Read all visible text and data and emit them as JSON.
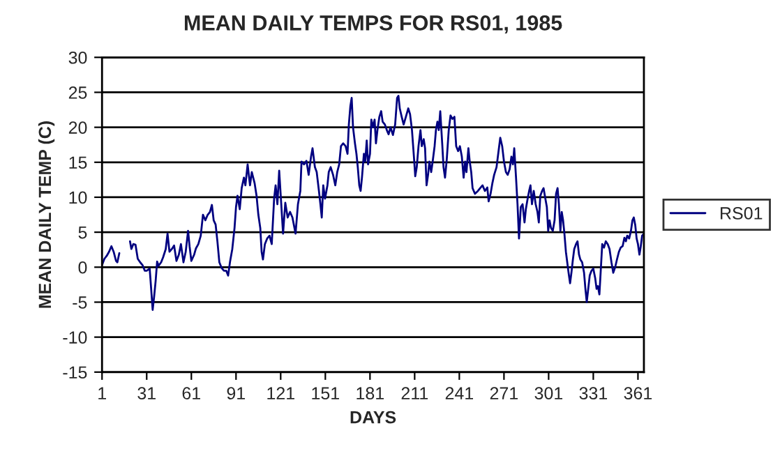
{
  "chart_data": {
    "type": "line",
    "title": "MEAN DAILY TEMPS FOR RS01, 1985",
    "xlabel": "DAYS",
    "ylabel": "MEAN DAILY TEMP (C)",
    "xlim": [
      1,
      365
    ],
    "xticks": [
      1,
      31,
      61,
      91,
      121,
      151,
      181,
      211,
      241,
      271,
      301,
      331,
      361
    ],
    "ylim": [
      -15,
      30
    ],
    "yticks": [
      -15,
      -10,
      -5,
      0,
      5,
      10,
      15,
      20,
      25,
      30
    ],
    "grid": "y",
    "legend": "right",
    "marker": "none",
    "line_style": "solid",
    "series": [
      {
        "name": "RS01",
        "color": "#000080",
        "x": [
          1,
          2.6,
          4.1,
          5.7,
          7.3,
          8.8,
          10.4,
          11.3,
          12.6,
          16,
          19.8,
          20.7,
          22,
          23.5,
          25,
          26.6,
          28.2,
          29.7,
          31,
          33,
          34,
          35,
          36,
          37,
          38,
          39,
          40.7,
          42,
          43.8,
          45,
          46.3,
          47.9,
          49.4,
          51,
          52.6,
          54,
          55.7,
          57.2,
          58.8,
          59.8,
          61,
          62.9,
          64.1,
          65.7,
          67.3,
          68.8,
          70.4,
          72,
          73.5,
          74.8,
          76,
          77.3,
          78.5,
          79.8,
          81.3,
          82.9,
          84.4,
          85.7,
          87,
          88.5,
          90,
          91,
          92,
          93.5,
          94.8,
          96.3,
          97.3,
          98.8,
          100.4,
          101.6,
          103.5,
          104.8,
          106,
          107.3,
          108.2,
          109.1,
          110.4,
          111.9,
          113.5,
          115,
          116.6,
          117.6,
          118.8,
          120,
          122.6,
          124.1,
          125.7,
          127.3,
          128.9,
          131,
          132.6,
          134.2,
          135,
          136.7,
          138.3,
          139.8,
          141.4,
          142.4,
          144,
          145.2,
          146.7,
          147.7,
          148.6,
          149.6,
          150.8,
          152.4,
          153.3,
          154.6,
          156.2,
          157.7,
          159,
          160.3,
          161.5,
          163,
          164.6,
          165.9,
          166.8,
          167.8,
          168.7,
          169.6,
          170.9,
          171.9,
          172.8,
          173.8,
          174.7,
          175.6,
          176.9,
          177.8,
          178.8,
          179.7,
          181,
          181.9,
          182.9,
          184.1,
          185,
          186,
          187.3,
          188.5,
          189.5,
          191,
          192.3,
          193.5,
          194.8,
          196.4,
          197.9,
          199.2,
          200.1,
          201,
          202.3,
          203.6,
          205.1,
          206.7,
          207.9,
          209.2,
          210.5,
          211.4,
          212.4,
          213.6,
          214.9,
          215.8,
          217.1,
          218,
          219,
          220,
          220.9,
          222.1,
          223.1,
          224.4,
          225.3,
          226.3,
          227.2,
          228.2,
          229.5,
          230.4,
          231.4,
          232.6,
          233.9,
          235.1,
          236.4,
          237.7,
          238.9,
          240.2,
          241.4,
          242.7,
          243.9,
          244.9,
          245.8,
          247.1,
          248,
          249,
          249.9,
          251.5,
          253.5,
          255,
          256.6,
          258.2,
          259.8,
          260.7,
          262,
          263.2,
          264.4,
          266,
          267.6,
          268.5,
          269.8,
          271,
          272.3,
          273.5,
          274.8,
          276,
          277,
          277.9,
          279.1,
          280.1,
          281.1,
          282.3,
          283.5,
          284.8,
          285.7,
          286.9,
          287.9,
          288.8,
          289.8,
          291,
          292.3,
          293.5,
          294.4,
          295.4,
          296.6,
          297.6,
          298.8,
          299.8,
          300.7,
          301.6,
          302.6,
          303.8,
          305,
          306,
          307,
          307.9,
          308.9,
          309.8,
          310.7,
          311.6,
          312.6,
          313.5,
          314.4,
          315.4,
          316.3,
          317.3,
          318.2,
          319.4,
          320.4,
          321.4,
          322.3,
          323.5,
          324.8,
          325.7,
          326.6,
          327.6,
          328.6,
          329.8,
          331,
          332.3,
          333.2,
          334.1,
          335.1,
          336,
          337,
          338.2,
          339.4,
          340.7,
          341.9,
          343.2,
          344.4,
          345.7,
          346.9,
          348.2,
          349.4,
          350.7,
          351.9,
          352.9,
          353.8,
          355.1,
          356.3,
          357.3,
          358.2,
          359.2,
          360.1,
          361,
          362,
          362.9,
          363.8,
          365
        ],
        "values": [
          0.3,
          1.2,
          1.6,
          2.2,
          3.0,
          2.2,
          0.9,
          0.7,
          2.0,
          null,
          3.7,
          2.6,
          3.3,
          3.2,
          1.2,
          0.7,
          0.3,
          -0.5,
          -0.5,
          -0.2,
          -3.1,
          -6.1,
          -4.2,
          -2.0,
          0.8,
          0.2,
          0.7,
          1.4,
          2.6,
          4.8,
          2.2,
          2.6,
          3.1,
          0.9,
          1.8,
          3.3,
          0.7,
          2.2,
          5.2,
          3.0,
          0.9,
          1.8,
          2.7,
          3.3,
          4.5,
          7.5,
          6.7,
          7.5,
          7.9,
          8.9,
          6.7,
          6.1,
          3.7,
          0.7,
          -0.1,
          -0.5,
          -0.5,
          -1.2,
          0.8,
          2.6,
          5.6,
          8.6,
          10.2,
          8.3,
          11.3,
          12.8,
          11.7,
          14.7,
          11.7,
          13.6,
          12.0,
          10.2,
          7.5,
          5.6,
          2.2,
          1.1,
          3.3,
          4.1,
          4.5,
          3.3,
          9.8,
          11.7,
          9.0,
          13.8,
          4.8,
          9.2,
          7.1,
          7.9,
          7.1,
          4.8,
          9.0,
          10.9,
          15.1,
          14.7,
          15.2,
          13.2,
          15.8,
          17.0,
          14.3,
          13.6,
          10.9,
          9.0,
          7.1,
          11.7,
          9.8,
          11.7,
          13.6,
          14.3,
          13.2,
          11.7,
          13.6,
          14.7,
          17.3,
          17.7,
          17.3,
          16.2,
          20.4,
          23.0,
          24.2,
          20.0,
          17.7,
          16.2,
          14.3,
          11.7,
          10.9,
          12.8,
          16.2,
          15.1,
          18.1,
          14.7,
          16.2,
          21.1,
          20.0,
          21.1,
          17.7,
          19.6,
          21.5,
          22.3,
          20.8,
          20.4,
          19.6,
          19.0,
          20.0,
          18.9,
          20.4,
          24.2,
          24.5,
          22.7,
          21.5,
          20.4,
          21.5,
          22.7,
          21.9,
          19.6,
          15.8,
          13.0,
          14.3,
          17.3,
          19.6,
          17.3,
          18.3,
          17.0,
          11.7,
          13.2,
          15.1,
          13.6,
          15.1,
          17.3,
          19.6,
          20.8,
          19.6,
          22.3,
          17.7,
          14.3,
          12.8,
          15.5,
          19.6,
          21.7,
          21.2,
          21.5,
          17.3,
          16.6,
          17.3,
          15.8,
          12.8,
          15.1,
          13.6,
          17.0,
          15.1,
          13.6,
          11.3,
          10.5,
          10.9,
          11.3,
          11.7,
          10.9,
          11.4,
          9.4,
          10.5,
          12.0,
          13.2,
          14.3,
          17.0,
          18.5,
          17.3,
          15.1,
          13.6,
          13.2,
          14.0,
          15.8,
          14.7,
          17.0,
          12.8,
          9.0,
          4.1,
          8.6,
          9.0,
          6.4,
          8.3,
          9.8,
          10.9,
          11.7,
          9.0,
          10.9,
          9.0,
          7.9,
          6.4,
          10.2,
          10.9,
          11.3,
          9.8,
          8.6,
          5.2,
          6.7,
          5.6,
          5.2,
          6.7,
          10.5,
          11.3,
          9.0,
          5.2,
          7.9,
          6.7,
          4.8,
          2.2,
          0.7,
          -0.8,
          -2.3,
          -0.8,
          1.1,
          2.6,
          3.3,
          3.7,
          1.8,
          1.1,
          0.7,
          -0.8,
          -3.1,
          -5.0,
          -3.1,
          -1.2,
          -0.5,
          -0.2,
          -1.6,
          -3.1,
          -2.7,
          -3.9,
          -0.5,
          3.3,
          2.8,
          3.7,
          3.3,
          2.6,
          0.7,
          -0.8,
          0,
          1.1,
          2.2,
          2.8,
          3.0,
          4.2,
          3.7,
          4.5,
          4.1,
          5.2,
          6.7,
          7.1,
          6.0,
          4.1,
          3.3,
          1.8,
          3.0,
          4.5,
          4.8
        ]
      }
    ]
  }
}
